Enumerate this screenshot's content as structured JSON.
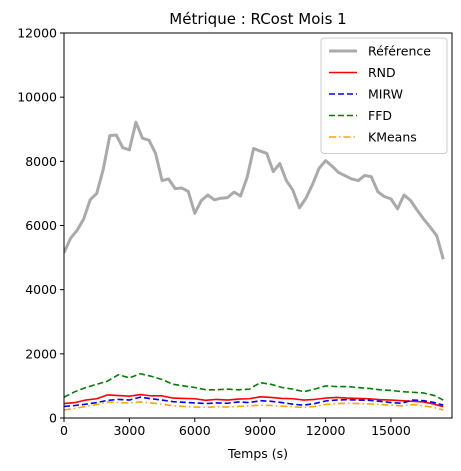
{
  "chart_data": {
    "type": "line",
    "title": "Métrique : RCost Mois 1",
    "xlabel": "Temps (s)",
    "ylabel": "",
    "xlim": [
      0,
      17800
    ],
    "ylim": [
      0,
      12000
    ],
    "xticks": [
      0,
      3000,
      6000,
      9000,
      12000,
      15000
    ],
    "yticks": [
      0,
      2000,
      4000,
      6000,
      8000,
      10000,
      12000
    ],
    "grid": false,
    "legend_position": "top-right",
    "series": [
      {
        "name": "Référence",
        "color": "#aaaaaa",
        "dash": "solid",
        "x": [
          0,
          300,
          600,
          900,
          1200,
          1500,
          1800,
          2100,
          2400,
          2700,
          3000,
          3300,
          3600,
          3900,
          4200,
          4500,
          4800,
          5100,
          5400,
          5700,
          6000,
          6300,
          6600,
          6900,
          7200,
          7500,
          7800,
          8100,
          8400,
          8700,
          9000,
          9300,
          9600,
          9900,
          10200,
          10500,
          10800,
          11100,
          11400,
          11700,
          12000,
          12300,
          12600,
          12900,
          13200,
          13500,
          13800,
          14100,
          14400,
          14700,
          15000,
          15300,
          15600,
          15900,
          16200,
          16500,
          16800,
          17100,
          17400
        ],
        "values": [
          5150,
          5600,
          5850,
          6200,
          6800,
          7000,
          7750,
          8800,
          8820,
          8420,
          8360,
          9220,
          8720,
          8660,
          8250,
          7400,
          7450,
          7150,
          7170,
          7060,
          6380,
          6780,
          6950,
          6800,
          6850,
          6870,
          7040,
          6920,
          7500,
          8400,
          8320,
          8250,
          7680,
          7930,
          7400,
          7100,
          6550,
          6850,
          7280,
          7780,
          8020,
          7850,
          7650,
          7550,
          7450,
          7400,
          7560,
          7520,
          7050,
          6900,
          6830,
          6520,
          6950,
          6780,
          6480,
          6200,
          5950,
          5680,
          4950
        ]
      },
      {
        "name": "RND",
        "color": "#ff0000",
        "dash": "solid",
        "x": [
          0,
          500,
          1000,
          1500,
          2000,
          2500,
          3000,
          3500,
          4000,
          4500,
          5000,
          5500,
          6000,
          6500,
          7000,
          7500,
          8000,
          8500,
          9000,
          9500,
          10000,
          10500,
          11000,
          11500,
          12000,
          12500,
          13000,
          13500,
          14000,
          14500,
          15000,
          15500,
          16000,
          16500,
          17000,
          17400
        ],
        "values": [
          450,
          480,
          560,
          600,
          720,
          700,
          680,
          730,
          690,
          690,
          620,
          610,
          600,
          550,
          580,
          560,
          590,
          600,
          660,
          640,
          610,
          600,
          560,
          580,
          620,
          640,
          620,
          610,
          600,
          570,
          560,
          540,
          520,
          500,
          430,
          350
        ]
      },
      {
        "name": "MIRW",
        "color": "#0000ff",
        "dash": "dashed",
        "x": [
          0,
          500,
          1000,
          1500,
          2000,
          2500,
          3000,
          3500,
          4000,
          4500,
          5000,
          5500,
          6000,
          6500,
          7000,
          7500,
          8000,
          8500,
          9000,
          9500,
          10000,
          10500,
          11000,
          11500,
          12000,
          12500,
          13000,
          13500,
          14000,
          14500,
          15000,
          15500,
          16000,
          16500,
          17000,
          17400
        ],
        "values": [
          360,
          390,
          430,
          480,
          550,
          580,
          560,
          650,
          600,
          560,
          510,
          490,
          470,
          450,
          470,
          460,
          500,
          480,
          540,
          520,
          480,
          430,
          400,
          450,
          530,
          560,
          570,
          560,
          550,
          520,
          480,
          460,
          560,
          540,
          480,
          400
        ]
      },
      {
        "name": "FFD",
        "color": "#008000",
        "dash": "dashed",
        "x": [
          0,
          500,
          1000,
          1500,
          2000,
          2500,
          3000,
          3500,
          4000,
          4500,
          5000,
          5500,
          6000,
          6500,
          7000,
          7500,
          8000,
          8500,
          9000,
          9500,
          10000,
          10500,
          11000,
          11500,
          12000,
          12500,
          13000,
          13500,
          14000,
          14500,
          15000,
          15500,
          16000,
          16500,
          17000,
          17400
        ],
        "values": [
          650,
          820,
          950,
          1050,
          1150,
          1350,
          1250,
          1380,
          1300,
          1200,
          1050,
          1000,
          950,
          880,
          880,
          900,
          880,
          900,
          1100,
          1050,
          950,
          900,
          820,
          900,
          1000,
          980,
          980,
          950,
          920,
          880,
          860,
          820,
          800,
          780,
          700,
          560
        ]
      },
      {
        "name": "KMeans",
        "color": "#ffa500",
        "dash": "dashdot",
        "x": [
          0,
          500,
          1000,
          1500,
          2000,
          2500,
          3000,
          3500,
          4000,
          4500,
          5000,
          5500,
          6000,
          6500,
          7000,
          7500,
          8000,
          8500,
          9000,
          9500,
          10000,
          10500,
          11000,
          11500,
          12000,
          12500,
          13000,
          13500,
          14000,
          14500,
          15000,
          15500,
          16000,
          16500,
          17000,
          17400
        ],
        "values": [
          250,
          300,
          360,
          420,
          500,
          480,
          470,
          500,
          470,
          430,
          380,
          360,
          340,
          330,
          350,
          340,
          360,
          380,
          400,
          390,
          370,
          350,
          330,
          360,
          420,
          450,
          460,
          450,
          440,
          420,
          400,
          380,
          420,
          380,
          320,
          250
        ]
      }
    ]
  }
}
